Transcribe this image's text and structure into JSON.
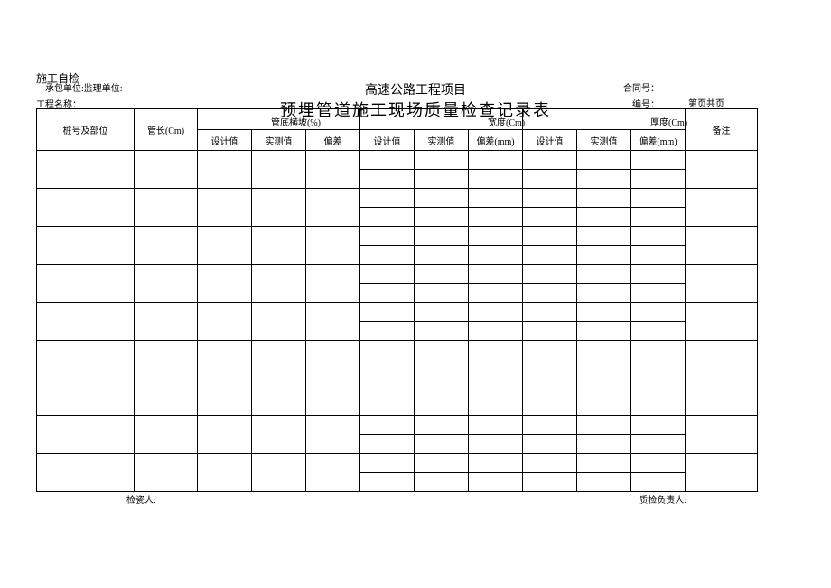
{
  "labels": {
    "top": "施工自检",
    "sub": "承包单位:监理单位:",
    "project_title": "高速公路工程项目",
    "contract": "合同号：",
    "main_title": "预埋管道施工现场质量检查记录表",
    "project_name": "工程名称：",
    "code": "编号：",
    "page": "第页共页"
  },
  "columns": {
    "pile": "桩号及部位",
    "tube_len": "管长(Cm)",
    "group1": "管底横坡(%)",
    "group2": "宽度(Cm)",
    "group3": "厚度(Cm)",
    "remark": "备注",
    "design": "设计值",
    "measured": "实测值",
    "dev": "偏差",
    "dev_hua": "偏差(mm)",
    "dev_mm": "偏差(mm)"
  },
  "footer": {
    "inspector": "检瓷人:",
    "qc_lead": "质检负责人:"
  },
  "widths": {
    "pile": 108,
    "tube_len": 70,
    "sub": 60,
    "remark": 80
  }
}
